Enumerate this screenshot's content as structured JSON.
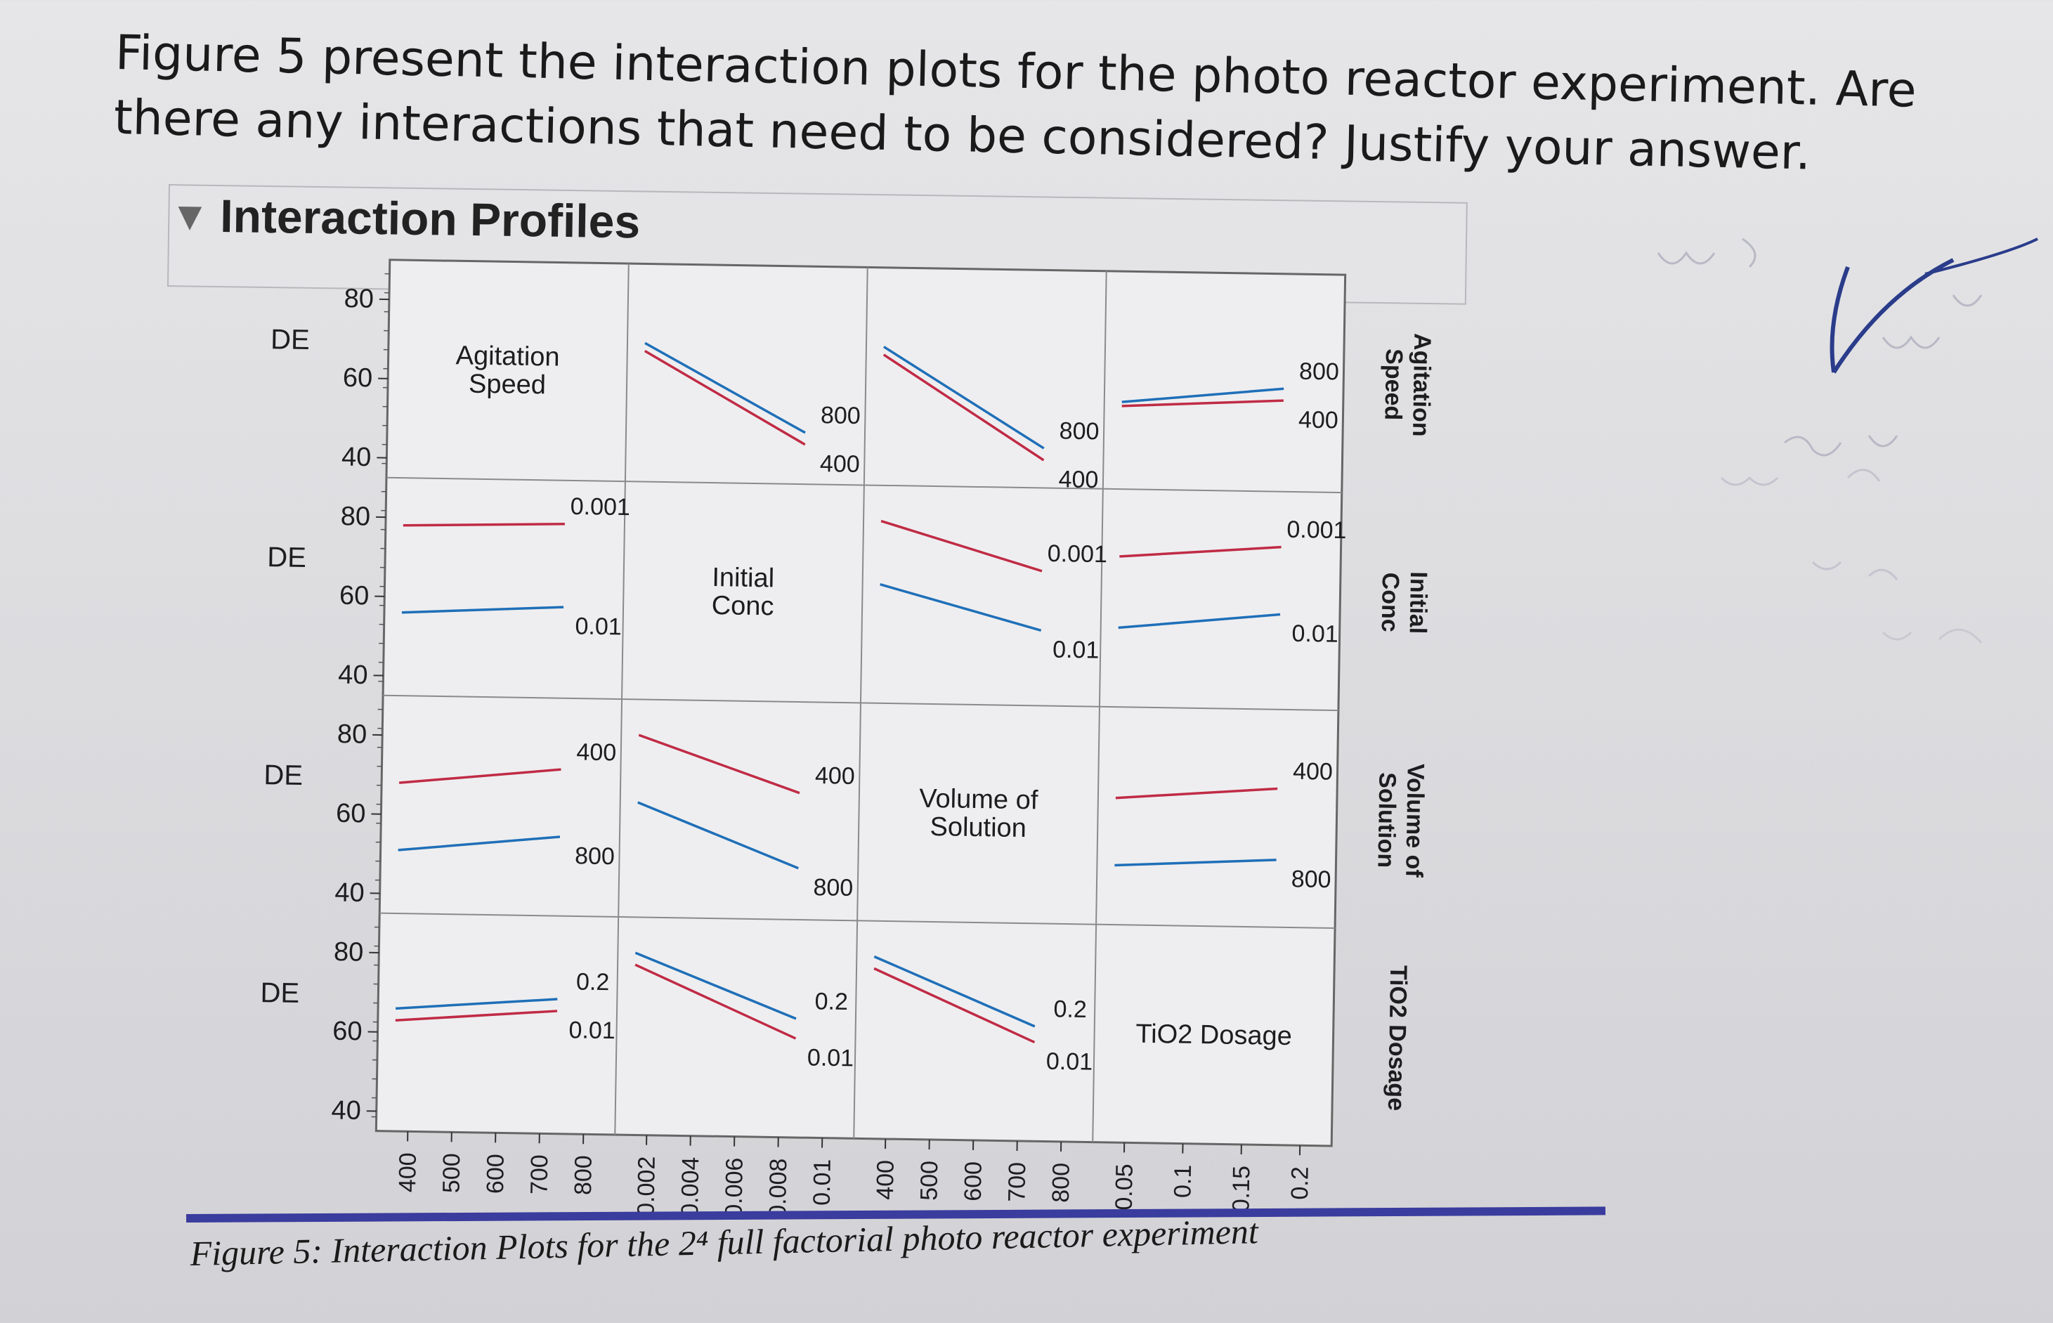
{
  "question": "Figure 5 present the interaction plots for the photo reactor experiment. Are there any interactions that need to be considered? Justify your answer.",
  "profile_title": "Interaction Profiles",
  "caption": "Figure 5: Interaction Plots for the 2⁴ full factorial photo reactor experiment",
  "colors": {
    "red": "#c02b45",
    "blue": "#1f6fb8",
    "grid": "#8a8a8a"
  },
  "chart_data": {
    "type": "line",
    "response": "DE",
    "factors": [
      {
        "name": "Agitation Speed",
        "label_lines": [
          "Agitation",
          "Speed"
        ],
        "ticks": [
          "400",
          "500",
          "600",
          "700",
          "800"
        ],
        "low": "400",
        "high": "800"
      },
      {
        "name": "Initial Conc",
        "label_lines": [
          "Initial",
          "Conc"
        ],
        "ticks": [
          "0.002",
          "0.004",
          "0.006",
          "0.008",
          "0.01"
        ],
        "low": "0.001",
        "high": "0.01"
      },
      {
        "name": "Volume of Solution",
        "label_lines": [
          "Volume of",
          "Solution"
        ],
        "ticks": [
          "400",
          "500",
          "600",
          "700",
          "800"
        ],
        "low": "400",
        "high": "800"
      },
      {
        "name": "TiO2 Dosage",
        "label_lines": [
          "TiO2 Dosage"
        ],
        "ticks": [
          "0.05",
          "0.1",
          "0.15",
          "0.2"
        ],
        "low": "0.01",
        "high": "0.2"
      }
    ],
    "y_ticks": [
      "40",
      "60",
      "80"
    ],
    "ylim": [
      35,
      90
    ],
    "panels": [
      {
        "row": 0,
        "col": 1,
        "series": [
          {
            "label": "800",
            "color": "blue",
            "y": [
              70,
              48
            ]
          },
          {
            "label": "400",
            "color": "red",
            "y": [
              68,
              45
            ]
          }
        ]
      },
      {
        "row": 0,
        "col": 2,
        "series": [
          {
            "label": "800",
            "color": "blue",
            "y": [
              70,
              45
            ]
          },
          {
            "label": "400",
            "color": "red",
            "y": [
              68,
              42
            ]
          }
        ]
      },
      {
        "row": 0,
        "col": 3,
        "series": [
          {
            "label": "800",
            "color": "blue",
            "y": [
              57,
              61
            ]
          },
          {
            "label": "400",
            "color": "red",
            "y": [
              56,
              58
            ]
          }
        ]
      },
      {
        "row": 1,
        "col": 0,
        "series": [
          {
            "label": "0.001",
            "color": "red",
            "y": [
              78,
              79
            ]
          },
          {
            "label": "0.01",
            "color": "blue",
            "y": [
              56,
              58
            ]
          }
        ]
      },
      {
        "row": 1,
        "col": 2,
        "series": [
          {
            "label": "0.001",
            "color": "red",
            "y": [
              81,
              69
            ]
          },
          {
            "label": "0.01",
            "color": "blue",
            "y": [
              65,
              54
            ]
          }
        ]
      },
      {
        "row": 1,
        "col": 3,
        "series": [
          {
            "label": "0.001",
            "color": "red",
            "y": [
              73,
              76
            ]
          },
          {
            "label": "0.01",
            "color": "blue",
            "y": [
              55,
              59
            ]
          }
        ]
      },
      {
        "row": 2,
        "col": 0,
        "series": [
          {
            "label": "400",
            "color": "red",
            "y": [
              68,
              72
            ]
          },
          {
            "label": "800",
            "color": "blue",
            "y": [
              51,
              55
            ]
          }
        ]
      },
      {
        "row": 2,
        "col": 1,
        "series": [
          {
            "label": "400",
            "color": "red",
            "y": [
              81,
              67
            ]
          },
          {
            "label": "800",
            "color": "blue",
            "y": [
              64,
              48
            ]
          }
        ]
      },
      {
        "row": 2,
        "col": 3,
        "series": [
          {
            "label": "400",
            "color": "red",
            "y": [
              67,
              70
            ]
          },
          {
            "label": "800",
            "color": "blue",
            "y": [
              50,
              52
            ]
          }
        ]
      },
      {
        "row": 3,
        "col": 0,
        "series": [
          {
            "label": "0.2",
            "color": "blue",
            "y": [
              66,
              69
            ]
          },
          {
            "label": "0.01",
            "color": "red",
            "y": [
              63,
              66
            ]
          }
        ]
      },
      {
        "row": 3,
        "col": 1,
        "series": [
          {
            "label": "0.2",
            "color": "blue",
            "y": [
              81,
              65
            ]
          },
          {
            "label": "0.01",
            "color": "red",
            "y": [
              78,
              60
            ]
          }
        ]
      },
      {
        "row": 3,
        "col": 2,
        "series": [
          {
            "label": "0.2",
            "color": "blue",
            "y": [
              81,
              64
            ]
          },
          {
            "label": "0.01",
            "color": "red",
            "y": [
              78,
              60
            ]
          }
        ]
      }
    ]
  }
}
